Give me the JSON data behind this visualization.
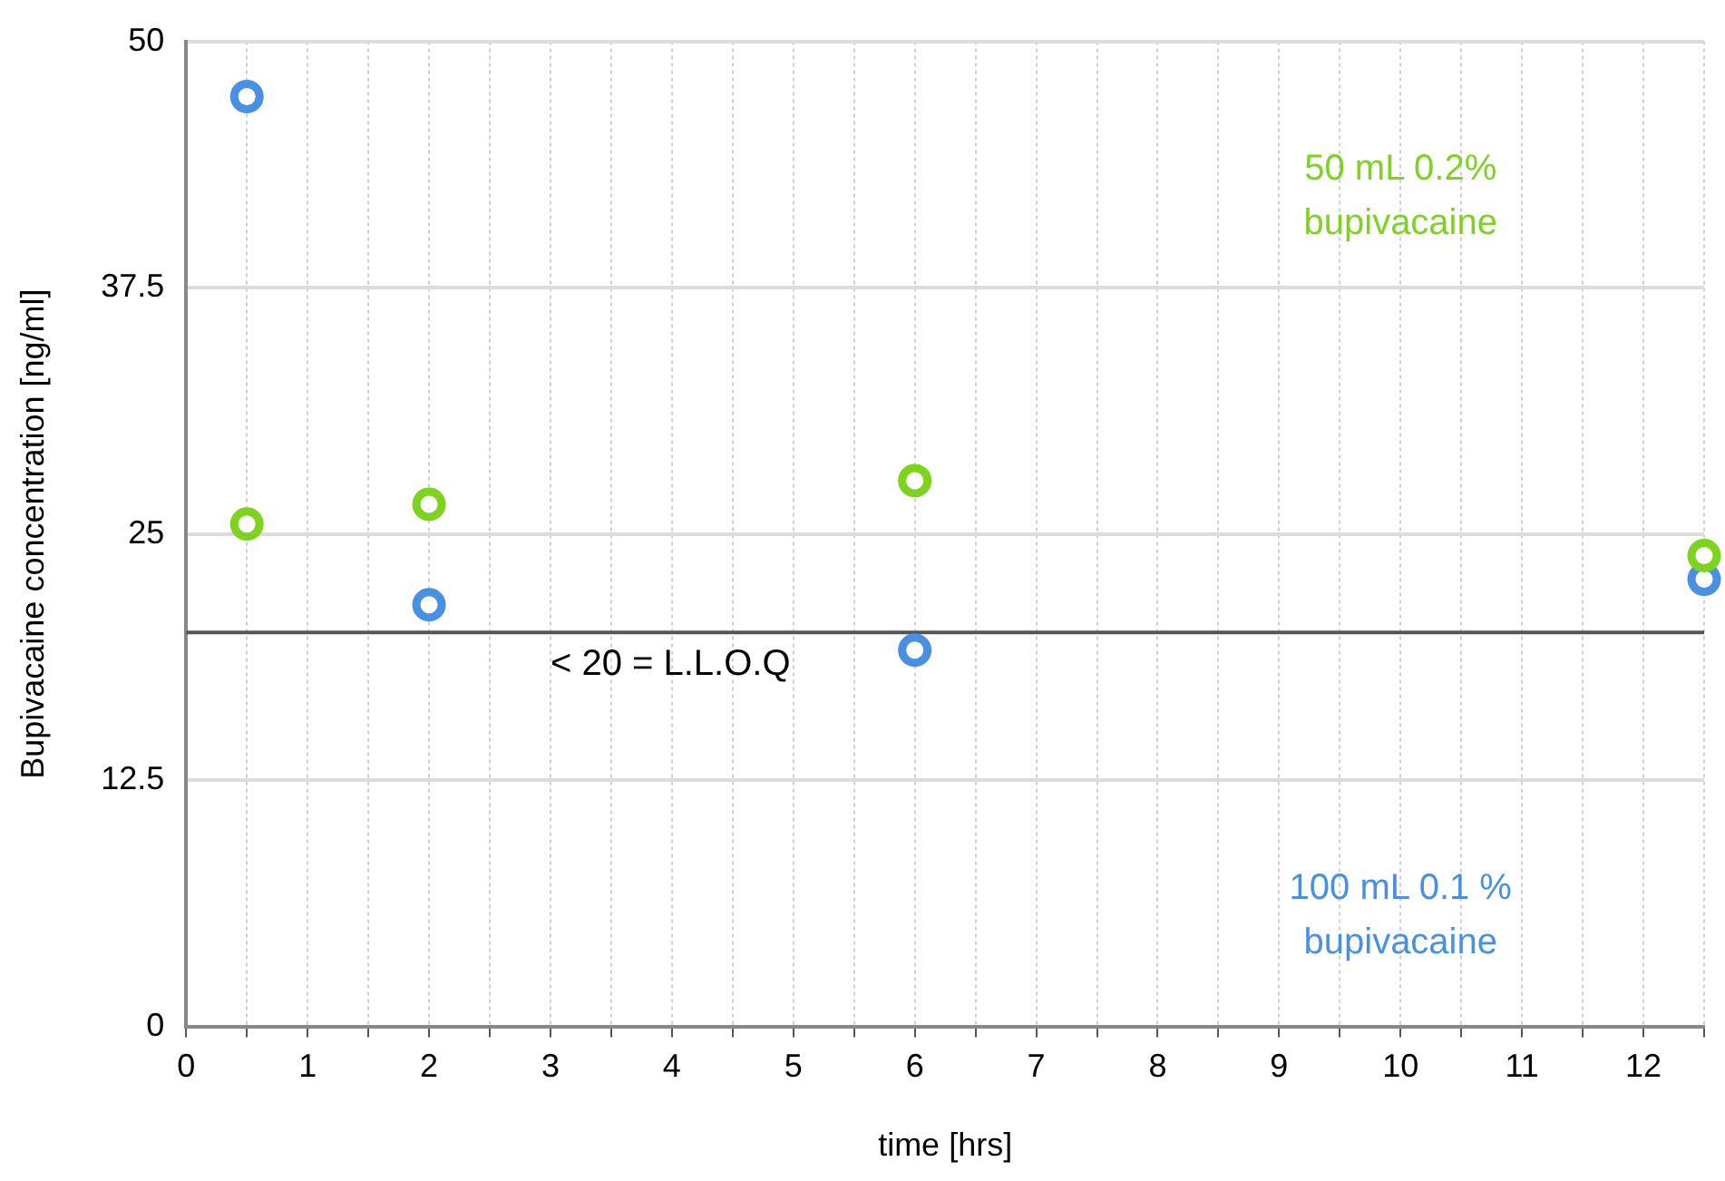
{
  "chart_data": {
    "type": "scatter",
    "xlabel": "time [hrs]",
    "ylabel": "Bupivacaine concentration [ng/ml]",
    "x": [
      0.5,
      2,
      6,
      12.5
    ],
    "series": [
      {
        "name": "50 mL 0.2% bupivacaine",
        "color": "#7ed321",
        "values": [
          25.5,
          26.5,
          27.7,
          23.9
        ]
      },
      {
        "name": "100 mL 0.1 % bupivacaine",
        "color": "#4a90e2",
        "values": [
          47.2,
          21.4,
          19.1,
          22.7
        ]
      }
    ],
    "xlim": [
      0,
      12.5
    ],
    "xticks": [
      0,
      {
        "value": 0.5,
        "label": null
      },
      1,
      {
        "value": 1.5,
        "label": null
      },
      2,
      {
        "value": 2.5,
        "label": null
      },
      3,
      {
        "value": 3.5,
        "label": null
      },
      4,
      {
        "value": 4.5,
        "label": null
      },
      5,
      {
        "value": 5.5,
        "label": null
      },
      6,
      {
        "value": 6.5,
        "label": null
      },
      7,
      {
        "value": 7.5,
        "label": null
      },
      8,
      {
        "value": 8.5,
        "label": null
      },
      9,
      {
        "value": 9.5,
        "label": null
      },
      10,
      {
        "value": 10.5,
        "label": null
      },
      11,
      {
        "value": 11.5,
        "label": null
      },
      12,
      {
        "value": 12.5,
        "label": null
      }
    ],
    "ylim": [
      0,
      50
    ],
    "yticks": [
      0,
      12.5,
      25,
      37.5,
      50
    ],
    "grid": true,
    "marker": "circle",
    "legend": false,
    "ref_lines": [
      {
        "axis": "y",
        "value": 20,
        "label": "< 20 = L.L.O.Q",
        "color": "#555555"
      }
    ]
  }
}
